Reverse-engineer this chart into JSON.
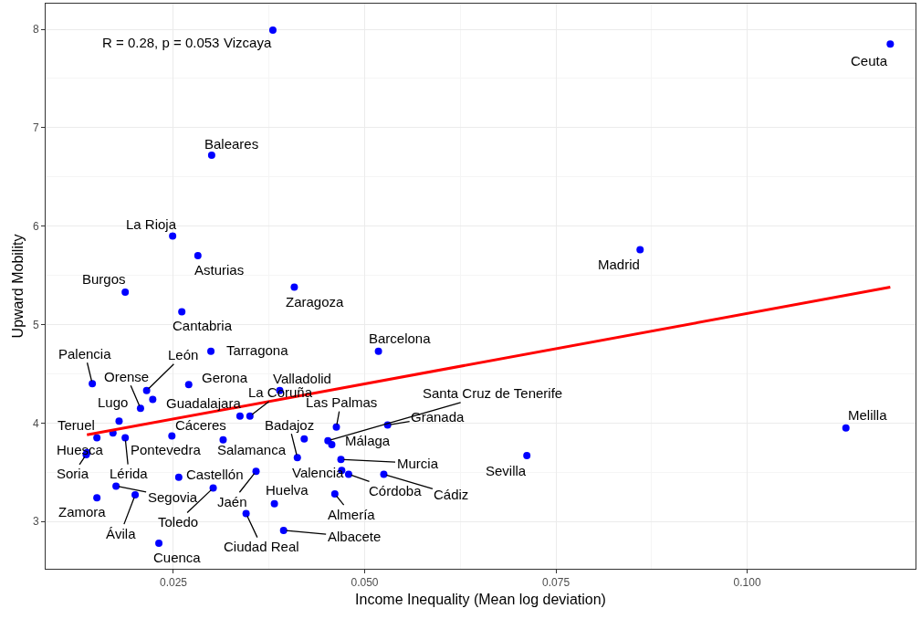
{
  "chart_data": {
    "type": "scatter",
    "xlabel": "Income Inequality (Mean log deviation)",
    "ylabel": "Upward Mobility",
    "annotations": [
      "R = 0.28, p = 0.053"
    ],
    "xlim": [
      0.0083,
      0.122
    ],
    "ylim": [
      2.52,
      8.26
    ],
    "xticks": [
      {
        "value": 0.025,
        "label": "0.025"
      },
      {
        "value": 0.05,
        "label": "0.050"
      },
      {
        "value": 0.075,
        "label": "0.075"
      },
      {
        "value": 0.1,
        "label": "0.100"
      }
    ],
    "yticks": [
      3,
      4,
      5,
      6,
      7,
      8
    ],
    "grid": true,
    "series": [
      {
        "type": "scatter",
        "color": "#0000ff",
        "marker": "circle",
        "x": [
          0.038,
          0.1187,
          0.03,
          0.0249,
          0.0282,
          0.086,
          0.0187,
          0.0408,
          0.0261,
          0.0518,
          0.0299,
          0.0144,
          0.0215,
          0.027,
          0.0389,
          0.0207,
          0.0223,
          0.0179,
          0.0337,
          0.035,
          0.015,
          0.0171,
          0.0187,
          0.0248,
          0.0315,
          0.0412,
          0.0421,
          0.0463,
          0.0452,
          0.0457,
          0.053,
          0.0469,
          0.047,
          0.0479,
          0.0525,
          0.0712,
          0.1129,
          0.0137,
          0.0136,
          0.0257,
          0.0358,
          0.0175,
          0.02,
          0.015,
          0.0302,
          0.0382,
          0.0461,
          0.0345,
          0.0394,
          0.0231
        ],
        "values": [
          7.99,
          7.85,
          6.72,
          5.9,
          5.7,
          5.76,
          5.33,
          5.38,
          5.13,
          4.73,
          4.73,
          4.4,
          4.33,
          4.39,
          4.33,
          4.15,
          4.24,
          4.02,
          4.07,
          4.07,
          3.85,
          3.9,
          3.85,
          3.87,
          3.83,
          3.65,
          3.84,
          3.96,
          3.82,
          3.78,
          3.98,
          3.63,
          3.52,
          3.48,
          3.48,
          3.67,
          3.95,
          3.7,
          3.68,
          3.45,
          3.51,
          3.36,
          3.27,
          3.24,
          3.34,
          3.18,
          3.28,
          3.08,
          2.91,
          2.78
        ],
        "value_labels": [
          "Vizcaya",
          "Ceuta",
          "Baleares",
          "La Rioja",
          "Asturias",
          "Madrid",
          "Burgos",
          "Zaragoza",
          "Cantabria",
          "Barcelona",
          "Tarragona",
          "Palencia",
          "León",
          "Gerona",
          "Valladolid",
          "Orense",
          "Guadalajara",
          "Lugo",
          null,
          "La Coruña",
          "Teruel",
          "Pontevedra",
          "Lérida",
          "Cáceres",
          "Salamanca",
          "Badajoz",
          null,
          "Las Palmas",
          "Santa Cruz de Tenerife",
          "Málaga",
          "Granada",
          "Murcia",
          "Valencia",
          "Córdoba",
          "Cádiz",
          "Sevilla",
          "Melilla",
          "Huesca",
          "Soria",
          "Castellón",
          "Jaén",
          "Segovia",
          "Ávila",
          "Zamora",
          "Toledo",
          "Huelva",
          "Almería",
          "Ciudad Real",
          "Albacete",
          "Cuenca"
        ]
      },
      {
        "type": "line",
        "color": "#ff0000",
        "x": [
          0.0137,
          0.1187
        ],
        "values": [
          3.88,
          5.38
        ]
      }
    ]
  }
}
